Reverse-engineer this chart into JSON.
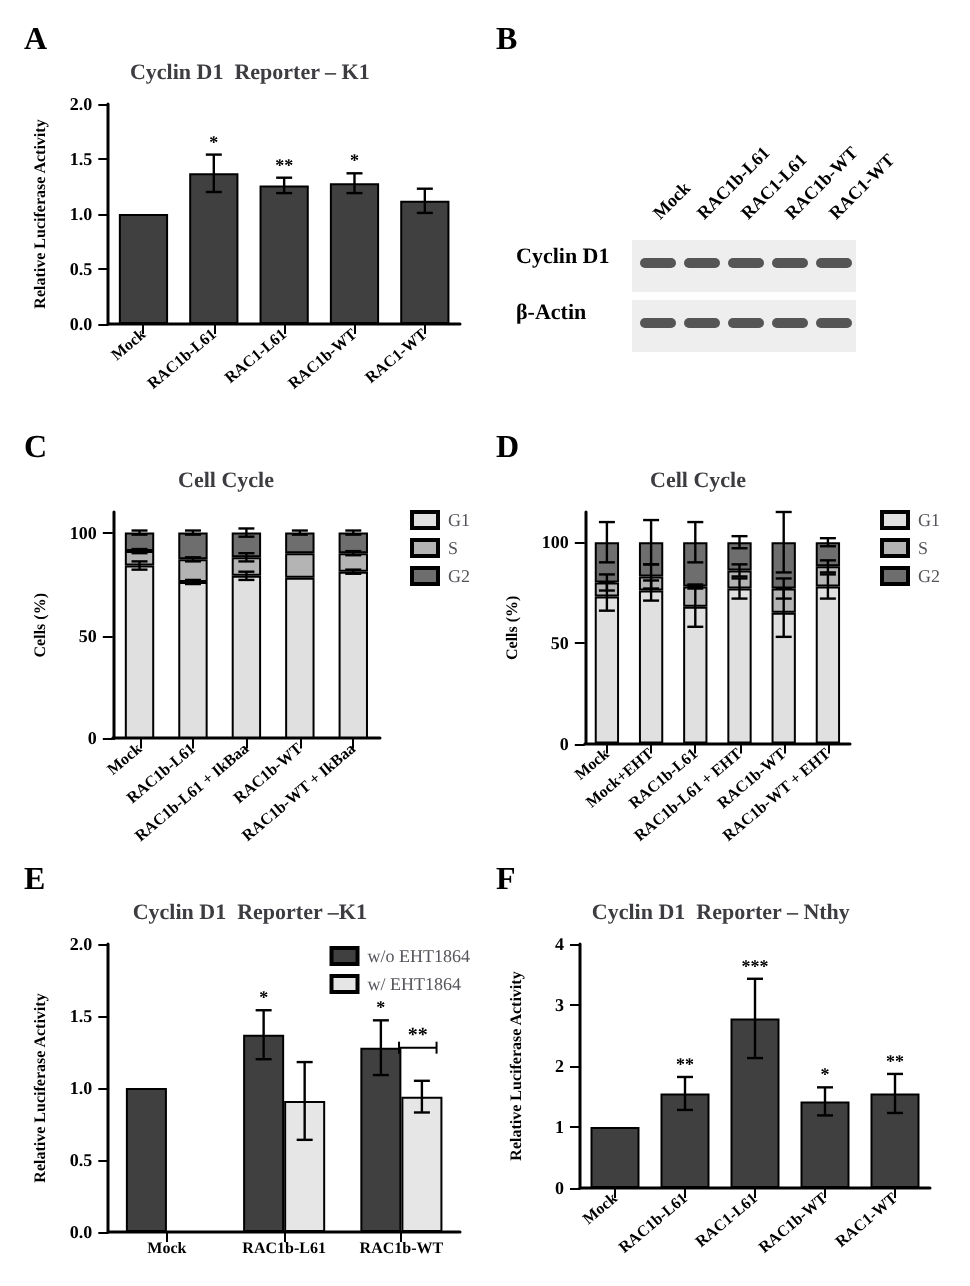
{
  "chart_data": [
    {
      "type": "bar",
      "title": "Cyclin D1  Reporter – K1",
      "ylabel": "Relative Luciferase Activity",
      "categories": [
        "Mock",
        "RAC1b-L61",
        "RAC1-L61",
        "RAC1b-WT",
        "RAC1-WT"
      ],
      "values": [
        1.0,
        1.37,
        1.26,
        1.28,
        1.12
      ],
      "errors": [
        null,
        0.17,
        0.07,
        0.09,
        0.11
      ],
      "value_labels": [
        null,
        "*",
        "**",
        "*",
        null
      ],
      "color": "#404040",
      "ylim": [
        0,
        2
      ],
      "yticks": [
        {
          "value": 0,
          "label": "0.0"
        },
        {
          "value": 0.5,
          "label": "0.5"
        },
        {
          "value": 1,
          "label": "1.0"
        },
        {
          "value": 1.5,
          "label": "1.5"
        },
        {
          "value": 2,
          "label": "2.0"
        }
      ],
      "annotations": [
        "A"
      ]
    },
    {
      "type": "other",
      "categories": [
        "Mock",
        "RAC1b-L61",
        "RAC1-L61",
        "RAC1b-WT",
        "RAC1-WT"
      ],
      "y_categories": [
        "Cyclin D1",
        "β-Actin"
      ],
      "annotations": [
        "B"
      ]
    },
    {
      "type": "bar",
      "title": "Cell Cycle",
      "ylabel": "Cells (%)",
      "stacked": true,
      "legend": "right",
      "categories": [
        "Mock",
        "RAC1b-L61",
        "RAC1b-L61 + IkBaa",
        "RAC1b-WT",
        "RAC1b-WT + IkBaa"
      ],
      "series": [
        {
          "name": "G1",
          "color": "#e0e0e0",
          "values": [
            84,
            76,
            79,
            78,
            81
          ],
          "errors": [
            2,
            1,
            2,
            null,
            1
          ]
        },
        {
          "name": "S",
          "color": "#b4b4b4",
          "values": [
            7,
            11,
            9,
            12,
            9
          ],
          "errors": [
            1,
            1,
            2,
            null,
            1
          ]
        },
        {
          "name": "G2",
          "color": "#6e6e6e",
          "values": [
            9,
            13,
            12,
            10,
            10
          ],
          "errors": [
            1,
            1,
            2,
            1,
            1
          ]
        }
      ],
      "ylim": [
        0,
        110
      ],
      "yticks": [
        0,
        50,
        100
      ],
      "annotations": [
        "C"
      ]
    },
    {
      "type": "bar",
      "title": "Cell Cycle",
      "ylabel": "Cells (%)",
      "stacked": true,
      "legend": "right",
      "categories": [
        "Mock",
        "Mock+EHT",
        "RAC1b-L61",
        "RAC1b-L61 + EHT",
        "RAC1b-WT",
        "RAC1b-WT + EHT"
      ],
      "series": [
        {
          "name": "G1",
          "color": "#e0e0e0",
          "values": [
            73,
            76,
            68,
            77,
            65,
            78
          ],
          "errors": [
            7,
            5,
            10,
            5,
            12,
            6
          ]
        },
        {
          "name": "S",
          "color": "#b4b4b4",
          "values": [
            7,
            7,
            10,
            9,
            12,
            10
          ],
          "errors": [
            4,
            6,
            1,
            3,
            5,
            3
          ]
        },
        {
          "name": "G2",
          "color": "#6e6e6e",
          "values": [
            20,
            17,
            22,
            14,
            23,
            12
          ],
          "errors": [
            10,
            11,
            10,
            3,
            15,
            2
          ]
        }
      ],
      "ylim": [
        0,
        115
      ],
      "yticks": [
        0,
        50,
        100
      ],
      "annotations": [
        "D"
      ]
    },
    {
      "type": "bar",
      "title": "Cyclin D1  Reporter –K1",
      "ylabel": "Relative Luciferase Activity",
      "legend": "top right",
      "categories": [
        "Mock",
        "RAC1b-L61",
        "RAC1b-WT"
      ],
      "series": [
        {
          "name": "w/o EHT1864",
          "color": "#404040",
          "values": [
            1.0,
            1.37,
            1.28
          ],
          "errors": [
            null,
            0.17,
            0.19
          ],
          "value_labels": [
            null,
            "*",
            "*"
          ]
        },
        {
          "name": "w/ EHT1864",
          "color": "#e6e6e6",
          "values": [
            null,
            0.91,
            0.94
          ],
          "errors": [
            null,
            0.27,
            0.11
          ]
        }
      ],
      "ylim": [
        0,
        2
      ],
      "yticks": [
        {
          "value": 0,
          "label": "0.0"
        },
        {
          "value": 0.5,
          "label": "0.5"
        },
        {
          "value": 1,
          "label": "1.0"
        },
        {
          "value": 1.5,
          "label": "1.5"
        },
        {
          "value": 2,
          "label": "2.0"
        }
      ],
      "annotations": [
        "E",
        "**"
      ]
    },
    {
      "type": "bar",
      "title": "Cyclin D1  Reporter – Nthy",
      "ylabel": "Relative Luciferase Activity",
      "categories": [
        "Mock",
        "RAC1b-L61",
        "RAC1-L61",
        "RAC1b-WT",
        "RAC1-WT"
      ],
      "values": [
        1.0,
        1.55,
        2.78,
        1.42,
        1.55
      ],
      "errors": [
        null,
        0.27,
        0.65,
        0.23,
        0.32
      ],
      "value_labels": [
        null,
        "**",
        "***",
        "*",
        "**"
      ],
      "color": "#404040",
      "ylim": [
        0,
        4
      ],
      "yticks": [
        0,
        1,
        2,
        3,
        4
      ],
      "annotations": [
        "F"
      ]
    }
  ]
}
